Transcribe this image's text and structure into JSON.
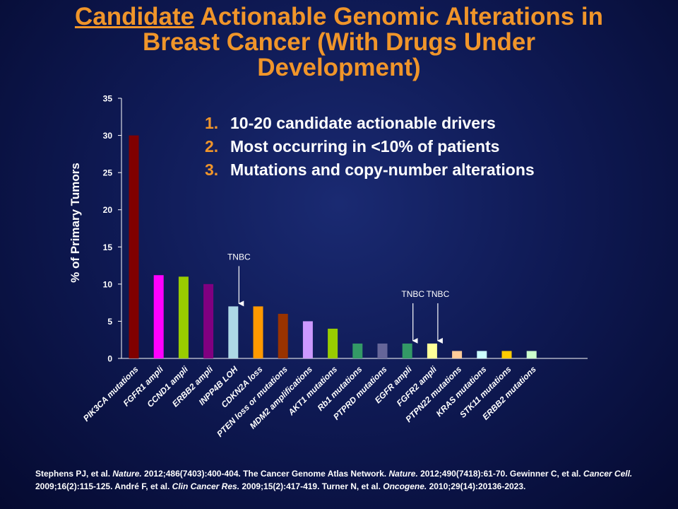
{
  "title": {
    "underlined": "Candidate",
    "rest_line1": " Actionable Genomic Alterations in",
    "line2": "Breast Cancer (With Drugs Under",
    "line3": "Development)"
  },
  "bullets": [
    {
      "num": "1.",
      "text": "10-20 candidate actionable drivers"
    },
    {
      "num": "2.",
      "text": "Most occurring in <10% of patients"
    },
    {
      "num": "3.",
      "text": "Mutations and copy-number alterations"
    }
  ],
  "chart_data": {
    "type": "bar",
    "ylabel": "% of Primary Tumors",
    "ylim": [
      0,
      35
    ],
    "yticks": [
      0,
      5,
      10,
      15,
      20,
      25,
      30,
      35
    ],
    "grid": false,
    "categories": [
      "PIK3CA mutations",
      "FGFR1 ampli",
      "CCND1 ampli",
      "ERBB2 ampli",
      "INPP4B LOH",
      "CDKN2A loss",
      "PTEN loss or mutations",
      "MDM2 amplifications",
      "AKT1 mutations",
      "Rb1 mutations",
      "PTPRD mutations",
      "EGFR ampli",
      "FGFR2 ampli",
      "PTPN22 mutations",
      "KRAS mutations",
      "STK11 mutations",
      "ERBB2 mutations"
    ],
    "values": [
      30,
      11.2,
      11,
      10,
      7,
      7,
      6,
      5,
      4,
      2,
      2,
      2,
      2,
      1,
      1,
      1,
      1
    ],
    "colors": [
      "#800000",
      "#ff00ff",
      "#99cc00",
      "#800080",
      "#add8e6",
      "#ff9900",
      "#993300",
      "#cc99ff",
      "#99cc00",
      "#339966",
      "#666699",
      "#339966",
      "#ffff99",
      "#ffcc99",
      "#ccffff",
      "#ffcc00",
      "#ccffcc"
    ],
    "annotations": [
      {
        "text": "TNBC",
        "category": "INPP4B LOH"
      },
      {
        "text": "TNBC",
        "category": "EGFR ampli"
      },
      {
        "text": "TNBC",
        "category": "FGFR2 ampli"
      }
    ]
  },
  "footer": {
    "p1": "Stephens PJ,  et al. ",
    "j1": "Nature.",
    "p2": " 2012;486(7403):400-404.  The Cancer Genome Atlas Network. ",
    "j2": "Nature.",
    "p3": " 2012;490(7418):61-70. Gewinner C, et al. ",
    "j3": "Cancer Cell.",
    "p4": " 2009;16(2):115-125.  André F, et al. ",
    "j4": "Clin Cancer Res.",
    "p5": " 2009;15(2):417-419.  Turner N, et al. ",
    "j5": "Oncogene.",
    "p6": " 2010;29(14):20136-2023."
  }
}
